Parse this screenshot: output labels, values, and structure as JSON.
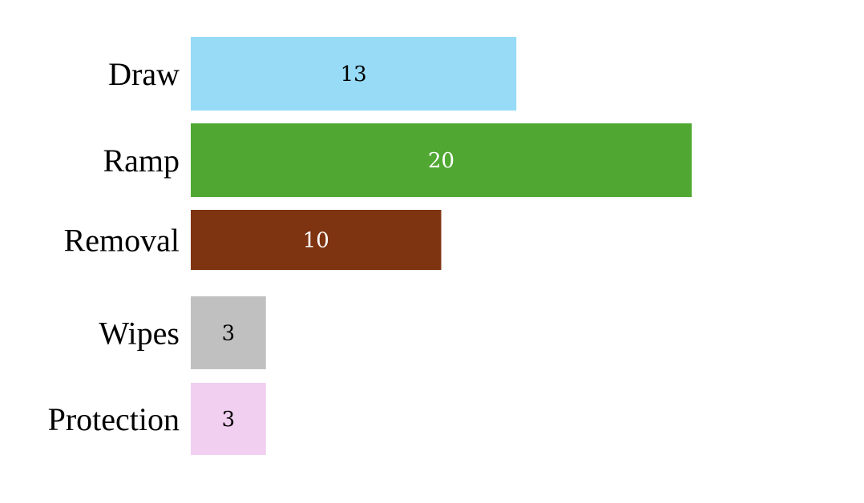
{
  "chart_data": {
    "type": "bar",
    "orientation": "horizontal",
    "categories": [
      "Draw",
      "Ramp",
      "Removal",
      "Wipes",
      "Protection"
    ],
    "values": [
      13,
      20,
      10,
      3,
      3
    ],
    "colors": [
      "#97dbf7",
      "#50a832",
      "#7f3411",
      "#c0c0c0",
      "#f1cff0"
    ],
    "label_colors": [
      "#000000",
      "#ffffff",
      "#ffffff",
      "#000000",
      "#000000"
    ],
    "data_labels": [
      "13",
      "20",
      "10",
      "3",
      "3"
    ],
    "title": "",
    "xlabel": "",
    "ylabel": "",
    "xlim": [
      0,
      20
    ],
    "grid": false,
    "legend": "none"
  }
}
